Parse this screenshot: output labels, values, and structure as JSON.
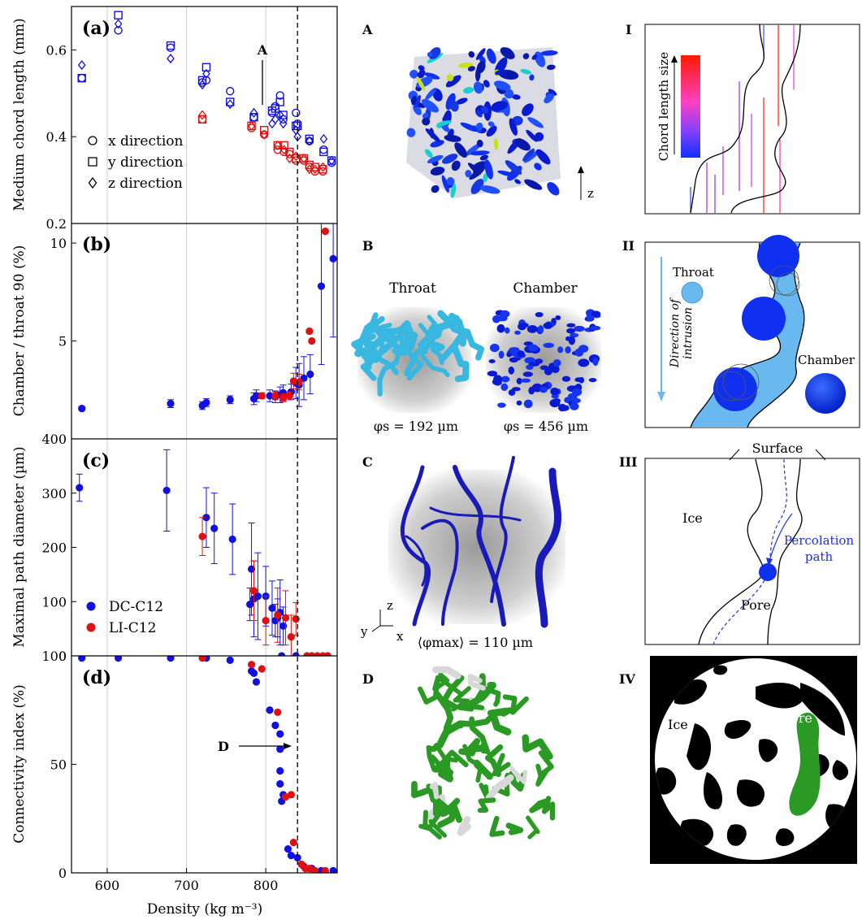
{
  "chart_data": [
    {
      "id": "a",
      "type": "scatter",
      "panel_label": "(a)",
      "ylabel": "Medium chord length (mm)",
      "yticks": [
        "0.2",
        "0.4",
        "0.6"
      ],
      "ylim": [
        0.2,
        0.7
      ],
      "annotation": "A",
      "legend": [
        {
          "marker": "circle",
          "label": "x direction"
        },
        {
          "marker": "square",
          "label": "y direction"
        },
        {
          "marker": "diamond",
          "label": "z direction"
        }
      ],
      "series": [
        {
          "name": "DC-C12",
          "color": "#1010e0",
          "x": [
            568,
            614,
            680,
            720,
            725,
            755,
            785,
            808,
            812,
            818,
            822,
            838,
            840,
            855,
            873,
            883
          ],
          "circle": [
            0.535,
            0.645,
            0.605,
            0.525,
            0.53,
            0.505,
            0.445,
            0.455,
            0.47,
            0.495,
            0.44,
            0.455,
            0.43,
            0.39,
            0.37,
            0.34
          ],
          "square": [
            0.535,
            0.68,
            0.61,
            0.53,
            0.56,
            0.48,
            0.445,
            0.46,
            0.465,
            0.48,
            0.45,
            0.425,
            0.425,
            0.395,
            0.365,
            0.345
          ],
          "diamond": [
            0.565,
            0.66,
            0.58,
            0.52,
            0.545,
            0.475,
            0.455,
            0.43,
            0.44,
            0.45,
            0.43,
            0.415,
            0.4,
            0.39,
            0.395,
            0.345
          ]
        },
        {
          "name": "LI-C12",
          "color": "#e01010",
          "x": [
            720,
            782,
            798,
            815,
            823,
            830,
            838,
            848,
            855,
            862,
            872
          ],
          "circle": [
            0.44,
            0.42,
            0.405,
            0.37,
            0.365,
            0.36,
            0.345,
            0.345,
            0.33,
            0.32,
            0.32
          ],
          "square": [
            0.44,
            0.425,
            0.415,
            0.38,
            0.38,
            0.365,
            0.35,
            0.35,
            0.335,
            0.33,
            0.325
          ],
          "diamond": [
            0.45,
            0.425,
            0.405,
            0.38,
            0.37,
            0.35,
            0.355,
            0.35,
            0.325,
            0.325,
            0.33
          ]
        }
      ]
    },
    {
      "id": "b",
      "type": "scatter",
      "panel_label": "(b)",
      "ylabel": "Chamber / throat 90 (%)",
      "yticks": [
        "5",
        "10"
      ],
      "ylim": [
        0,
        11
      ],
      "series": [
        {
          "name": "DC-C12",
          "color": "#1010e0",
          "x": [
            568,
            680,
            720,
            725,
            755,
            785,
            788,
            805,
            812,
            818,
            822,
            832,
            838,
            842,
            848,
            856,
            870,
            885
          ],
          "y": [
            1.55,
            1.8,
            1.7,
            1.85,
            2.0,
            2.05,
            2.2,
            2.2,
            2.15,
            2.25,
            2.35,
            2.4,
            2.85,
            2.75,
            3.1,
            3.3,
            7.8,
            9.2
          ],
          "yerr": [
            0.1,
            0.2,
            0.2,
            0.2,
            0.2,
            0.3,
            0.3,
            0.3,
            0.3,
            0.4,
            0.4,
            0.4,
            0.8,
            1.1,
            1.1,
            1.0,
            4.0,
            4.0
          ]
        },
        {
          "name": "LI-C12",
          "color": "#e01010",
          "x": [
            795,
            812,
            822,
            830,
            835,
            842,
            855,
            858,
            875
          ],
          "y": [
            2.2,
            2.2,
            2.1,
            2.2,
            2.95,
            2.9,
            5.5,
            5.0,
            10.6
          ],
          "yerr": [
            0.15,
            0.2,
            0.2,
            0.2,
            0.4,
            0.4,
            0,
            0,
            0
          ]
        }
      ]
    },
    {
      "id": "c",
      "type": "scatter",
      "panel_label": "(c)",
      "ylabel": "Maximal path diameter (µm)",
      "yticks": [
        "0",
        "100",
        "200",
        "300",
        "400"
      ],
      "ylim": [
        0,
        400
      ],
      "legend": [
        {
          "name": "DC-C12",
          "color": "#1010e0"
        },
        {
          "name": "LI-C12",
          "color": "#e01010"
        }
      ],
      "series": [
        {
          "name": "DC-C12",
          "color": "#1010e0",
          "x": [
            565,
            675,
            725,
            735,
            758,
            780,
            782,
            785,
            790,
            800,
            808,
            812,
            815,
            818,
            820,
            822,
            838
          ],
          "y": [
            310,
            305,
            255,
            235,
            215,
            95,
            160,
            105,
            110,
            110,
            88,
            65,
            70,
            80,
            0,
            55,
            0
          ],
          "yerr": [
            25,
            75,
            55,
            65,
            65,
            30,
            85,
            70,
            80,
            55,
            50,
            30,
            35,
            60,
            0,
            35,
            0
          ]
        },
        {
          "name": "LI-C12",
          "color": "#e01010",
          "x": [
            720,
            785,
            800,
            815,
            825,
            832,
            838,
            852,
            858,
            865,
            872,
            878
          ],
          "y": [
            220,
            120,
            65,
            75,
            70,
            35,
            68,
            0,
            0,
            0,
            0,
            0
          ],
          "yerr": [
            35,
            55,
            45,
            50,
            50,
            40,
            30,
            0,
            0,
            0,
            0,
            0
          ]
        }
      ]
    },
    {
      "id": "d",
      "type": "scatter",
      "panel_label": "(d)",
      "ylabel": "Connectivity index (%)",
      "xlabel": "Density (kg m⁻³)",
      "xticks": [
        "600",
        "700",
        "800"
      ],
      "xlim": [
        555,
        890
      ],
      "yticks": [
        "0",
        "50",
        "100"
      ],
      "ylim": [
        0,
        100
      ],
      "annotation": "D",
      "series": [
        {
          "name": "DC-C12",
          "color": "#1010e0",
          "x": [
            568,
            614,
            680,
            725,
            755,
            782,
            785,
            788,
            805,
            812,
            818,
            818,
            818,
            818,
            820,
            822,
            828,
            832,
            840,
            848,
            858,
            870,
            885
          ],
          "y": [
            99,
            99,
            99,
            99,
            98,
            93,
            92,
            88,
            75,
            68,
            64,
            57,
            47,
            41,
            33,
            36,
            11,
            8,
            7,
            3,
            2,
            1,
            1
          ]
        },
        {
          "name": "LI-C12",
          "color": "#e01010",
          "x": [
            720,
            782,
            795,
            815,
            825,
            832,
            835,
            845,
            850,
            855,
            862,
            875
          ],
          "y": [
            99,
            96,
            94,
            74,
            35,
            36,
            14,
            4,
            2,
            2,
            1,
            1
          ]
        }
      ]
    },
    {
      "id": "diagrams",
      "labels": {
        "A": "A",
        "B": "B",
        "C": "C",
        "D": "D",
        "I": "I",
        "II": "II",
        "III": "III",
        "IV": "IV"
      },
      "texts": {
        "a_axis": "z",
        "b_throat": "Throat",
        "b_chamber": "Chamber",
        "b_phi_throat": "φs = 192 µm",
        "b_phi_chamber": "φs = 456 µm",
        "c_phi": "⟨φmax⟩ = 110 µm",
        "c_ax_z": "z",
        "c_ax_y": "y",
        "c_ax_x": "x",
        "i_colorbar": "Chord length size",
        "ii_throat": "Throat",
        "ii_chamber": "Chamber",
        "ii_direction_1": "Direction of",
        "ii_direction_2": "intrusion",
        "iii_surface": "Surface",
        "iii_ice": "Ice",
        "iii_pore": "Pore",
        "iii_perc_1": "Percolation",
        "iii_perc_2": "path",
        "iv_ice": "Ice",
        "iv_pore": "Pore"
      },
      "colors": {
        "blue": "#1010e0",
        "red": "#e01010",
        "cyan": "#38b8e0",
        "green": "#2a9a24",
        "light_blue": "#6ab8f0"
      }
    }
  ]
}
